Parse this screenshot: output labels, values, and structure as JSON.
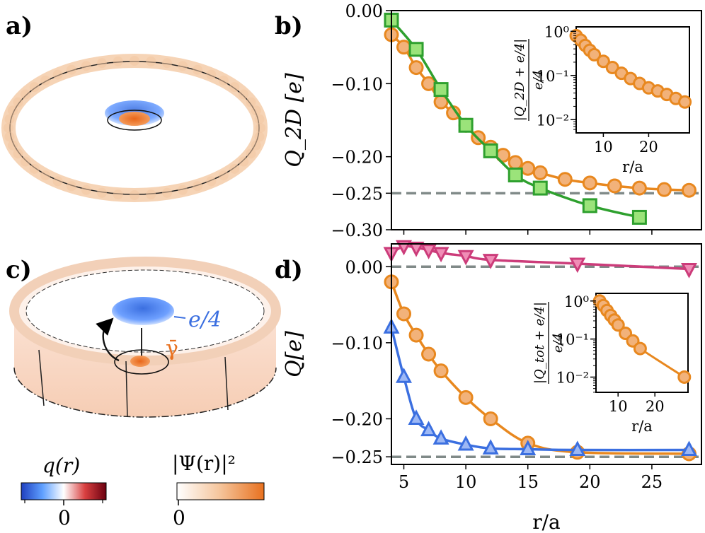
{
  "panel_labels": {
    "a": "a)",
    "b": "b)",
    "c": "c)",
    "d": "d)"
  },
  "illustration": {
    "charge_label": "e/4",
    "gamma_label": "γ̄",
    "colorbar_q": {
      "title": "q(r)",
      "tick": "0",
      "colors": [
        "#1f3fbf",
        "#5fa0ff",
        "#ffffff",
        "#d94040",
        "#6b0010"
      ]
    },
    "colorbar_psi": {
      "title": "|Ψ(r)|²",
      "tick": "0",
      "colors": [
        "#ffffff",
        "#f2a06a",
        "#e8711f"
      ]
    }
  },
  "colors": {
    "orange": "#e8881f",
    "orange_fill": "#f2b27a",
    "green": "#2ea02e",
    "green_fill": "#9be37a",
    "blue": "#3b6fe0",
    "blue_fill": "#9db8f5",
    "pink": "#cc3c7a",
    "pink_fill": "#f08db6",
    "dashed": "#808a88"
  },
  "chart_data": [
    {
      "id": "b",
      "type": "line",
      "ylabel": "Q_2D [e]",
      "xlabel": "",
      "xlim": [
        4,
        29
      ],
      "ylim": [
        -0.3,
        0.0
      ],
      "yticks": [
        0.0,
        -0.1,
        -0.2,
        -0.25,
        -0.3
      ],
      "ytick_labels": [
        "0.00",
        "−0.10",
        "−0.20",
        "−0.25",
        "−0.30"
      ],
      "reference_line": -0.25,
      "series": [
        {
          "name": "orange circles",
          "marker": "circle",
          "x": [
            4,
            5,
            6,
            7,
            8,
            9,
            10,
            11,
            12,
            13,
            14,
            15,
            16,
            18,
            20,
            22,
            24,
            26,
            28
          ],
          "y": [
            -0.033,
            -0.05,
            -0.078,
            -0.1,
            -0.125,
            -0.14,
            -0.157,
            -0.174,
            -0.187,
            -0.198,
            -0.208,
            -0.216,
            -0.222,
            -0.231,
            -0.236,
            -0.24,
            -0.243,
            -0.245,
            -0.246
          ]
        },
        {
          "name": "green squares",
          "marker": "square",
          "x": [
            4,
            6,
            8,
            10,
            12,
            14,
            16,
            20,
            24
          ],
          "y": [
            -0.013,
            -0.053,
            -0.108,
            -0.157,
            -0.192,
            -0.225,
            -0.243,
            -0.267,
            -0.283
          ]
        }
      ],
      "inset": {
        "ylabel": "|Q_2D + e/4| / (e/4)",
        "xlabel": "r/a",
        "xticks": [
          10,
          20
        ],
        "xlim": [
          4,
          29
        ],
        "yticks": [
          "10⁰",
          "10⁻¹",
          "10⁻²"
        ],
        "ylim_log10": [
          -2.3,
          0.1
        ],
        "x": [
          4,
          5,
          6,
          7,
          8,
          10,
          12,
          14,
          16,
          18,
          20,
          22,
          24,
          26,
          28
        ],
        "log10_y": [
          -0.1,
          -0.2,
          -0.32,
          -0.43,
          -0.53,
          -0.68,
          -0.82,
          -0.95,
          -1.07,
          -1.18,
          -1.28,
          -1.35,
          -1.43,
          -1.52,
          -1.6
        ]
      }
    },
    {
      "id": "d",
      "type": "line",
      "ylabel": "Q[e]",
      "xlabel": "r/a",
      "xlim": [
        4,
        29
      ],
      "ylim": [
        -0.26,
        0.03
      ],
      "xticks": [
        5,
        10,
        15,
        20,
        25
      ],
      "yticks": [
        0.0,
        -0.1,
        -0.2,
        -0.25
      ],
      "ytick_labels": [
        "0.00",
        "−0.10",
        "−0.20",
        "−0.25"
      ],
      "reference_lines": [
        0.0,
        -0.25
      ],
      "series": [
        {
          "name": "pink triangles",
          "marker": "triangle-down",
          "x": [
            4,
            5,
            6,
            7,
            8,
            10,
            12,
            19,
            28
          ],
          "y": [
            0.018,
            0.027,
            0.025,
            0.022,
            0.018,
            0.014,
            0.009,
            0.004,
            -0.003
          ]
        },
        {
          "name": "orange circles",
          "marker": "circle",
          "x": [
            4,
            5,
            6,
            7,
            8,
            10,
            12,
            15,
            19,
            28
          ],
          "y": [
            -0.02,
            -0.062,
            -0.09,
            -0.115,
            -0.137,
            -0.172,
            -0.2,
            -0.232,
            -0.244,
            -0.246
          ]
        },
        {
          "name": "blue triangles",
          "marker": "triangle-up",
          "x": [
            4,
            5,
            6,
            7,
            8,
            10,
            12,
            15,
            19,
            28
          ],
          "y": [
            -0.08,
            -0.145,
            -0.2,
            -0.215,
            -0.226,
            -0.234,
            -0.239,
            -0.24,
            -0.241,
            -0.241
          ]
        }
      ],
      "inset": {
        "ylabel": "|Q_tot + e/4| / (e/4)",
        "xlabel": "r/a",
        "xticks": [
          10,
          20
        ],
        "xlim": [
          4,
          29
        ],
        "yticks": [
          "10⁰",
          "10⁻¹",
          "10⁻²"
        ],
        "ylim_log10": [
          -2.4,
          0.2
        ],
        "x": [
          5,
          6,
          7,
          8,
          9,
          10,
          12,
          14,
          16,
          28
        ],
        "log10_y": [
          0.0,
          -0.12,
          -0.25,
          -0.38,
          -0.5,
          -0.63,
          -0.85,
          -1.05,
          -1.25,
          -2.0
        ]
      }
    }
  ]
}
